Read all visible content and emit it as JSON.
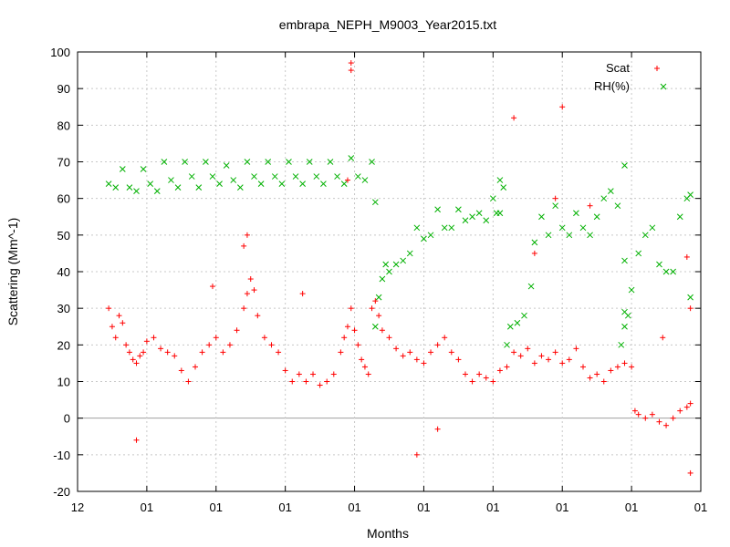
{
  "chart_data": {
    "type": "scatter",
    "title": "embrapa_NEPH_M9003_Year2015.txt",
    "xlabel": "Months",
    "ylabel": "Scattering (Mm^-1)",
    "x_ticks": [
      "12",
      "01",
      "01",
      "01",
      "01",
      "01",
      "01",
      "01",
      "01",
      "01"
    ],
    "xlim": [
      0,
      9
    ],
    "ylim": [
      -20,
      100
    ],
    "y_ticks": [
      -20,
      -10,
      0,
      10,
      20,
      30,
      40,
      50,
      60,
      70,
      80,
      90,
      100
    ],
    "grid": true,
    "legend_position": "top-right",
    "colors": {
      "Scat": "#ff0000",
      "RH(%)": "#00b000"
    },
    "series": [
      {
        "name": "Scat",
        "marker": "+",
        "points": [
          [
            0.45,
            30
          ],
          [
            0.5,
            25
          ],
          [
            0.55,
            22
          ],
          [
            0.6,
            28
          ],
          [
            0.65,
            26
          ],
          [
            0.7,
            20
          ],
          [
            0.75,
            18
          ],
          [
            0.8,
            16
          ],
          [
            0.85,
            15
          ],
          [
            0.9,
            17
          ],
          [
            0.95,
            18
          ],
          [
            1.0,
            21
          ],
          [
            1.1,
            22
          ],
          [
            1.2,
            19
          ],
          [
            1.3,
            18
          ],
          [
            1.4,
            17
          ],
          [
            1.5,
            13
          ],
          [
            1.6,
            10
          ],
          [
            1.7,
            14
          ],
          [
            1.8,
            18
          ],
          [
            1.9,
            20
          ],
          [
            2.0,
            22
          ],
          [
            2.1,
            18
          ],
          [
            2.2,
            20
          ],
          [
            2.3,
            24
          ],
          [
            2.4,
            30
          ],
          [
            2.45,
            34
          ],
          [
            2.5,
            38
          ],
          [
            2.55,
            35
          ],
          [
            2.6,
            28
          ],
          [
            2.7,
            22
          ],
          [
            2.8,
            20
          ],
          [
            2.9,
            18
          ],
          [
            3.0,
            13
          ],
          [
            3.1,
            10
          ],
          [
            3.2,
            12
          ],
          [
            3.3,
            10
          ],
          [
            3.4,
            12
          ],
          [
            3.5,
            9
          ],
          [
            3.6,
            10
          ],
          [
            3.7,
            12
          ],
          [
            3.8,
            18
          ],
          [
            3.85,
            22
          ],
          [
            3.9,
            25
          ],
          [
            3.95,
            30
          ],
          [
            4.0,
            24
          ],
          [
            4.05,
            20
          ],
          [
            4.1,
            16
          ],
          [
            4.15,
            14
          ],
          [
            4.2,
            12
          ],
          [
            4.25,
            30
          ],
          [
            4.3,
            32
          ],
          [
            4.35,
            28
          ],
          [
            4.4,
            24
          ],
          [
            4.5,
            22
          ],
          [
            4.6,
            19
          ],
          [
            4.7,
            17
          ],
          [
            4.8,
            18
          ],
          [
            4.9,
            16
          ],
          [
            5.0,
            15
          ],
          [
            5.1,
            18
          ],
          [
            5.2,
            20
          ],
          [
            5.3,
            22
          ],
          [
            5.4,
            18
          ],
          [
            5.5,
            16
          ],
          [
            5.6,
            12
          ],
          [
            5.7,
            10
          ],
          [
            5.8,
            12
          ],
          [
            5.9,
            11
          ],
          [
            6.0,
            10
          ],
          [
            6.1,
            13
          ],
          [
            6.2,
            14
          ],
          [
            6.3,
            18
          ],
          [
            6.4,
            17
          ],
          [
            6.5,
            19
          ],
          [
            6.6,
            15
          ],
          [
            6.7,
            17
          ],
          [
            6.8,
            16
          ],
          [
            6.9,
            18
          ],
          [
            7.0,
            15
          ],
          [
            7.1,
            16
          ],
          [
            7.2,
            19
          ],
          [
            7.3,
            14
          ],
          [
            7.4,
            11
          ],
          [
            7.5,
            12
          ],
          [
            7.6,
            10
          ],
          [
            7.7,
            13
          ],
          [
            7.8,
            14
          ],
          [
            7.9,
            15
          ],
          [
            8.0,
            14
          ],
          [
            8.05,
            2
          ],
          [
            8.1,
            1
          ],
          [
            8.2,
            0
          ],
          [
            8.3,
            1
          ],
          [
            8.4,
            -1
          ],
          [
            8.5,
            -2
          ],
          [
            8.6,
            0
          ],
          [
            8.7,
            2
          ],
          [
            8.8,
            3
          ],
          [
            8.85,
            4
          ],
          [
            3.95,
            97
          ],
          [
            3.95,
            95
          ],
          [
            2.4,
            47
          ],
          [
            2.45,
            50
          ],
          [
            3.9,
            65
          ],
          [
            6.3,
            82
          ],
          [
            7.0,
            85
          ],
          [
            0.85,
            -6
          ],
          [
            4.9,
            -10
          ],
          [
            5.2,
            -3
          ],
          [
            8.85,
            -15
          ],
          [
            8.8,
            44
          ],
          [
            6.6,
            45
          ],
          [
            7.4,
            58
          ],
          [
            6.9,
            60
          ],
          [
            3.25,
            34
          ],
          [
            1.95,
            36
          ],
          [
            8.85,
            30
          ],
          [
            8.45,
            22
          ]
        ]
      },
      {
        "name": "RH(%)",
        "marker": "x",
        "points": [
          [
            0.45,
            64
          ],
          [
            0.55,
            63
          ],
          [
            0.65,
            68
          ],
          [
            0.75,
            63
          ],
          [
            0.85,
            62
          ],
          [
            0.95,
            68
          ],
          [
            1.05,
            64
          ],
          [
            1.15,
            62
          ],
          [
            1.25,
            70
          ],
          [
            1.35,
            65
          ],
          [
            1.45,
            63
          ],
          [
            1.55,
            70
          ],
          [
            1.65,
            66
          ],
          [
            1.75,
            63
          ],
          [
            1.85,
            70
          ],
          [
            1.95,
            66
          ],
          [
            2.05,
            64
          ],
          [
            2.15,
            69
          ],
          [
            2.25,
            65
          ],
          [
            2.35,
            63
          ],
          [
            2.45,
            70
          ],
          [
            2.55,
            66
          ],
          [
            2.65,
            64
          ],
          [
            2.75,
            70
          ],
          [
            2.85,
            66
          ],
          [
            2.95,
            64
          ],
          [
            3.05,
            70
          ],
          [
            3.15,
            66
          ],
          [
            3.25,
            64
          ],
          [
            3.35,
            70
          ],
          [
            3.45,
            66
          ],
          [
            3.55,
            64
          ],
          [
            3.65,
            70
          ],
          [
            3.75,
            66
          ],
          [
            3.85,
            64
          ],
          [
            3.95,
            71
          ],
          [
            4.05,
            66
          ],
          [
            4.15,
            65
          ],
          [
            4.25,
            70
          ],
          [
            4.3,
            25
          ],
          [
            4.35,
            33
          ],
          [
            4.4,
            38
          ],
          [
            4.45,
            42
          ],
          [
            4.5,
            40
          ],
          [
            4.6,
            42
          ],
          [
            4.7,
            43
          ],
          [
            4.8,
            45
          ],
          [
            4.9,
            52
          ],
          [
            5.0,
            49
          ],
          [
            5.1,
            50
          ],
          [
            5.2,
            57
          ],
          [
            5.3,
            52
          ],
          [
            5.4,
            52
          ],
          [
            5.5,
            57
          ],
          [
            5.6,
            54
          ],
          [
            5.7,
            55
          ],
          [
            5.8,
            56
          ],
          [
            5.9,
            54
          ],
          [
            6.0,
            60
          ],
          [
            6.05,
            56
          ],
          [
            6.1,
            65
          ],
          [
            6.15,
            63
          ],
          [
            6.2,
            20
          ],
          [
            6.25,
            25
          ],
          [
            6.35,
            26
          ],
          [
            6.45,
            28
          ],
          [
            6.55,
            36
          ],
          [
            6.6,
            48
          ],
          [
            6.7,
            55
          ],
          [
            6.8,
            50
          ],
          [
            6.9,
            58
          ],
          [
            7.0,
            52
          ],
          [
            7.1,
            50
          ],
          [
            7.2,
            56
          ],
          [
            7.3,
            52
          ],
          [
            7.4,
            50
          ],
          [
            7.5,
            55
          ],
          [
            7.6,
            60
          ],
          [
            7.7,
            62
          ],
          [
            7.8,
            58
          ],
          [
            7.85,
            20
          ],
          [
            7.9,
            25
          ],
          [
            7.95,
            28
          ],
          [
            8.0,
            35
          ],
          [
            8.1,
            45
          ],
          [
            8.2,
            50
          ],
          [
            8.3,
            52
          ],
          [
            8.4,
            42
          ],
          [
            8.5,
            40
          ],
          [
            8.6,
            40
          ],
          [
            8.7,
            55
          ],
          [
            8.8,
            60
          ],
          [
            8.85,
            61
          ],
          [
            4.3,
            59
          ],
          [
            6.1,
            56
          ],
          [
            7.9,
            69
          ],
          [
            7.9,
            43
          ],
          [
            7.9,
            29
          ],
          [
            8.85,
            33
          ]
        ]
      }
    ]
  }
}
